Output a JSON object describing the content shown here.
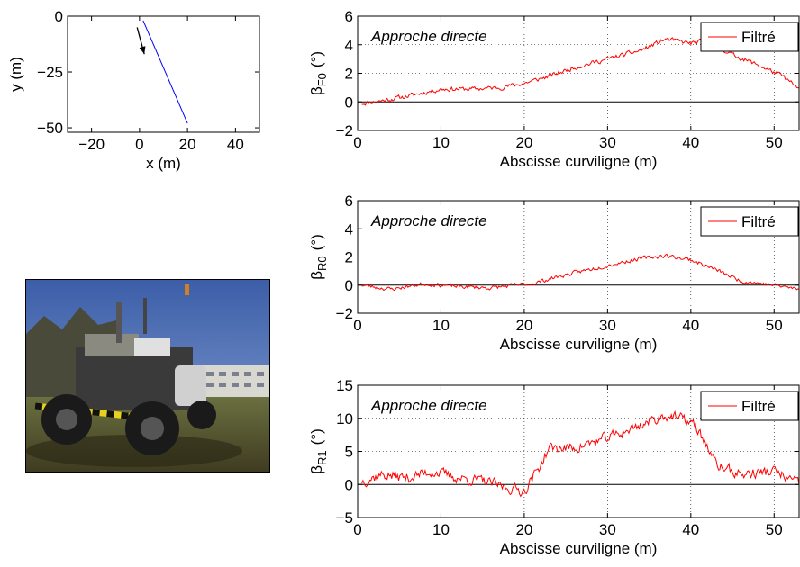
{
  "chart_data": [
    {
      "id": "trajectory",
      "type": "line",
      "xlabel": "x (m)",
      "ylabel": "y (m)",
      "xlim": [
        -30,
        50
      ],
      "ylim": [
        -52,
        0
      ],
      "xticks": [
        -20,
        0,
        20,
        40
      ],
      "yticks": [
        -50,
        -25,
        0
      ],
      "series": [
        {
          "color": "#0000ff",
          "x": [
            1.5,
            20
          ],
          "y": [
            -2,
            -48
          ]
        }
      ],
      "arrow": {
        "from": [
          -1,
          -5
        ],
        "to": [
          2,
          -17
        ]
      }
    },
    {
      "id": "beta_F0",
      "type": "line",
      "annotation": "Approche directe",
      "legend": "Filtré",
      "xlabel": "Abscisse curviligne (m)",
      "ylabel": "β",
      "ylabel_sub": "F0",
      "ylabel_unit": "(°)",
      "xlim": [
        0,
        53
      ],
      "ylim": [
        -2,
        6
      ],
      "xticks": [
        0,
        10,
        20,
        30,
        40,
        50
      ],
      "yticks": [
        -2,
        0,
        2,
        4,
        6
      ],
      "grid": true,
      "noise": 0.25,
      "seed": 11,
      "series": [
        {
          "name": "Filtré",
          "color": "#ff0000",
          "x": [
            0.5,
            3,
            6,
            10,
            14,
            17,
            20,
            23,
            26,
            30,
            34,
            37,
            40,
            42,
            45,
            48,
            51,
            53
          ],
          "y": [
            -0.1,
            0.1,
            0.4,
            0.9,
            0.9,
            1.0,
            1.3,
            1.8,
            2.4,
            3.0,
            3.6,
            4.4,
            4.1,
            4.3,
            3.3,
            2.6,
            1.8,
            0.9
          ]
        }
      ],
      "baseline": 0
    },
    {
      "id": "beta_R0",
      "type": "line",
      "annotation": "Approche directe",
      "legend": "Filtré",
      "xlabel": "Abscisse curviligne (m)",
      "ylabel": "β",
      "ylabel_sub": "R0",
      "ylabel_unit": "(°)",
      "xlim": [
        0,
        53
      ],
      "ylim": [
        -2,
        6
      ],
      "xticks": [
        0,
        10,
        20,
        30,
        40,
        50
      ],
      "yticks": [
        -2,
        0,
        2,
        4,
        6
      ],
      "grid": true,
      "noise": 0.22,
      "seed": 23,
      "series": [
        {
          "name": "Filtré",
          "color": "#ff0000",
          "x": [
            0.5,
            4,
            8,
            12,
            16,
            19,
            21,
            24,
            27,
            30,
            34,
            37,
            40,
            43,
            46,
            50,
            53
          ],
          "y": [
            0.0,
            -0.3,
            0.1,
            -0.1,
            -0.2,
            0.0,
            0.1,
            0.6,
            1.0,
            1.4,
            1.9,
            2.1,
            1.8,
            1.1,
            0.3,
            0.0,
            -0.3
          ]
        }
      ],
      "baseline": 0
    },
    {
      "id": "beta_R1",
      "type": "line",
      "annotation": "Approche directe",
      "legend": "Filtré",
      "xlabel": "Abscisse curviligne (m)",
      "ylabel": "β",
      "ylabel_sub": "R1",
      "ylabel_unit": "(°)",
      "xlim": [
        0,
        53
      ],
      "ylim": [
        -5,
        15
      ],
      "xticks": [
        0,
        10,
        20,
        30,
        40,
        50
      ],
      "yticks": [
        -5,
        0,
        5,
        10,
        15
      ],
      "grid": true,
      "noise": 1.3,
      "seed": 37,
      "series": [
        {
          "name": "Filtré",
          "color": "#ff0000",
          "x": [
            0.5,
            3,
            6,
            9,
            12,
            15,
            18,
            20,
            21.5,
            23,
            26,
            30,
            34,
            37,
            40,
            41.5,
            43,
            46,
            50,
            53
          ],
          "y": [
            0.5,
            1.5,
            1.0,
            2.0,
            1.0,
            0.5,
            -0.5,
            -1.0,
            2.0,
            5.5,
            5.5,
            7.0,
            9.0,
            10.5,
            9.5,
            7.0,
            3.0,
            1.5,
            2.0,
            0.0
          ]
        }
      ],
      "baseline": 0
    }
  ],
  "photo": {
    "subject": "vehicle-photo"
  }
}
